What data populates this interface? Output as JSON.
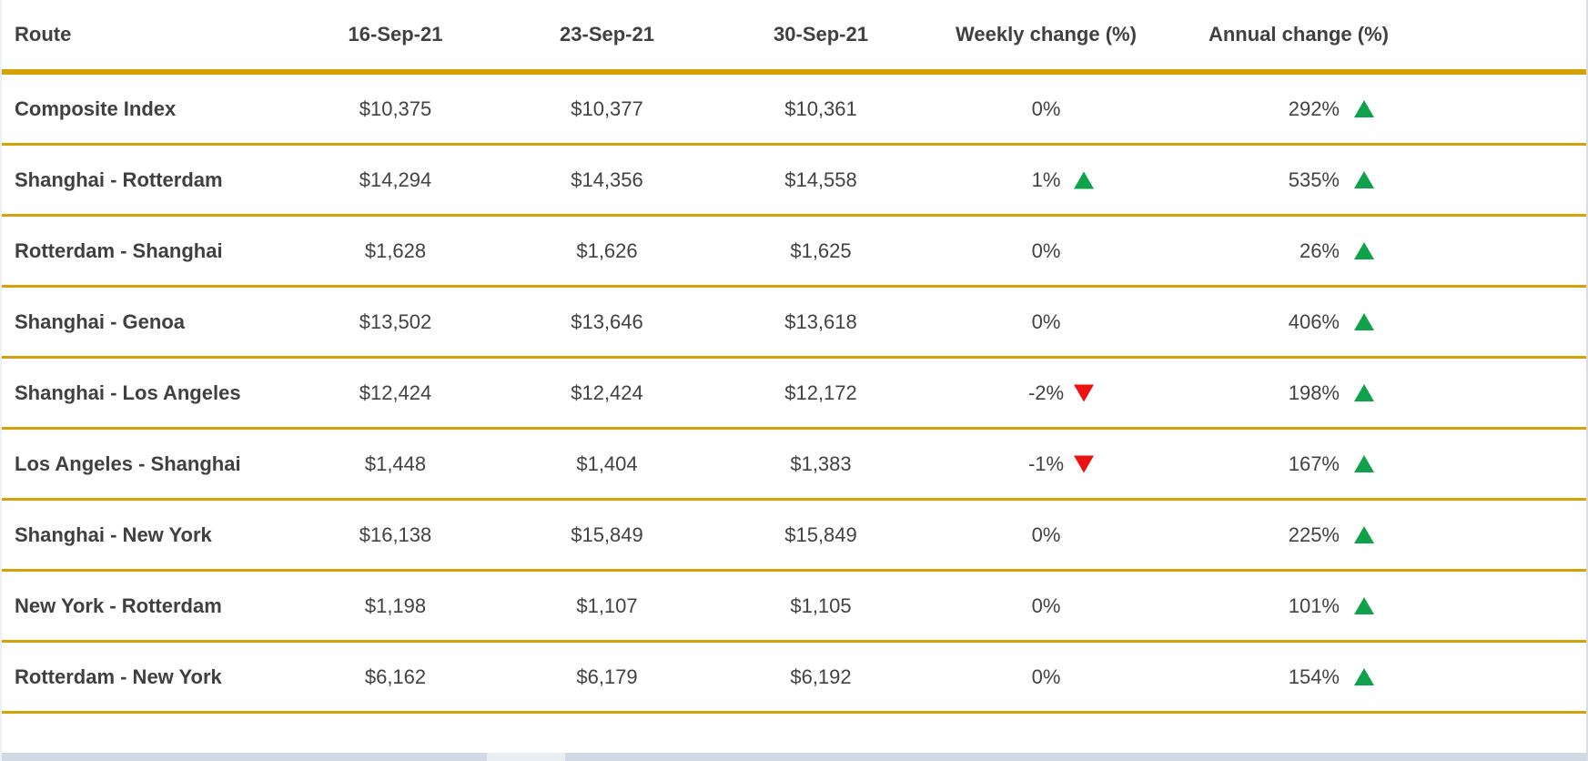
{
  "colors": {
    "text": "#404040",
    "divider_gold": "#d4a106",
    "up_green": "#0fa24b",
    "down_red": "#ee1111",
    "left_border": "#eef1f6",
    "right_border": "#d9dce1",
    "bottom_band": "#cfdae4",
    "bottom_band_light": "#e9eef3"
  },
  "chart_data": {
    "type": "table",
    "columns": [
      "Route",
      "16-Sep-21",
      "23-Sep-21",
      "30-Sep-21",
      "Weekly change (%)",
      "Annual change (%)"
    ],
    "rows": [
      {
        "route": "Composite Index",
        "d1": "$10,375",
        "d2": "$10,377",
        "d3": "$10,361",
        "weekly": "0%",
        "weekly_dir": "none",
        "annual": "292%",
        "annual_dir": "up"
      },
      {
        "route": "Shanghai - Rotterdam",
        "d1": "$14,294",
        "d2": "$14,356",
        "d3": "$14,558",
        "weekly": "1%",
        "weekly_dir": "up",
        "annual": "535%",
        "annual_dir": "up"
      },
      {
        "route": "Rotterdam - Shanghai",
        "d1": "$1,628",
        "d2": "$1,626",
        "d3": "$1,625",
        "weekly": "0%",
        "weekly_dir": "none",
        "annual": "26%",
        "annual_dir": "up"
      },
      {
        "route": "Shanghai - Genoa",
        "d1": "$13,502",
        "d2": "$13,646",
        "d3": "$13,618",
        "weekly": "0%",
        "weekly_dir": "none",
        "annual": "406%",
        "annual_dir": "up"
      },
      {
        "route": "Shanghai - Los Angeles",
        "d1": "$12,424",
        "d2": "$12,424",
        "d3": "$12,172",
        "weekly": "-2%",
        "weekly_dir": "down",
        "annual": "198%",
        "annual_dir": "up"
      },
      {
        "route": "Los Angeles - Shanghai",
        "d1": "$1,448",
        "d2": "$1,404",
        "d3": "$1,383",
        "weekly": "-1%",
        "weekly_dir": "down",
        "annual": "167%",
        "annual_dir": "up"
      },
      {
        "route": "Shanghai - New York",
        "d1": "$16,138",
        "d2": "$15,849",
        "d3": "$15,849",
        "weekly": "0%",
        "weekly_dir": "none",
        "annual": "225%",
        "annual_dir": "up"
      },
      {
        "route": "New York - Rotterdam",
        "d1": "$1,198",
        "d2": "$1,107",
        "d3": "$1,105",
        "weekly": "0%",
        "weekly_dir": "none",
        "annual": "101%",
        "annual_dir": "up"
      },
      {
        "route": "Rotterdam - New York",
        "d1": "$6,162",
        "d2": "$6,179",
        "d3": "$6,192",
        "weekly": "0%",
        "weekly_dir": "none",
        "annual": "154%",
        "annual_dir": "up"
      }
    ]
  }
}
